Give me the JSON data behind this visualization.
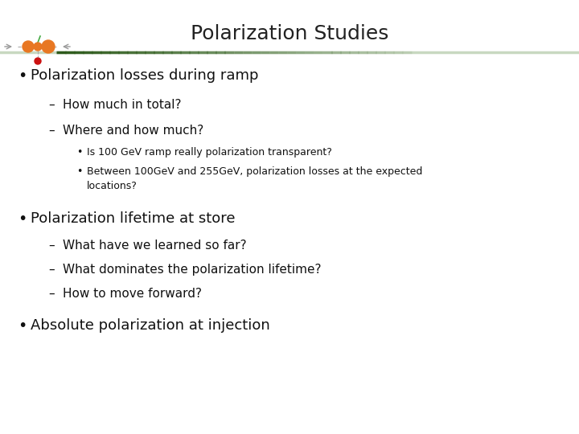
{
  "title": "Polarization Studies",
  "title_fontsize": 18,
  "title_color": "#222222",
  "bg_color": "#ffffff",
  "separator_color_dark": "#2d5a1b",
  "separator_color_light": "#c8d8c0",
  "bullet1_text": "Polarization losses during ramp",
  "bullet2_text": "Polarization lifetime at store",
  "bullet3_text": "Absolute polarization at injection",
  "sub1a": "How much in total?",
  "sub1b": "Where and how much?",
  "sub1b_sub1": "Is 100 GeV ramp really polarization transparent?",
  "sub1b_sub2": "Between 100GeV and 255GeV, polarization losses at the expected\nlocations?",
  "sub2a": "What have we learned so far?",
  "sub2b": "What dominates the polarization lifetime?",
  "sub2c": "How to move forward?",
  "bullet_fontsize": 13,
  "dash_fontsize": 11,
  "nested_fontsize": 9,
  "text_color": "#111111"
}
